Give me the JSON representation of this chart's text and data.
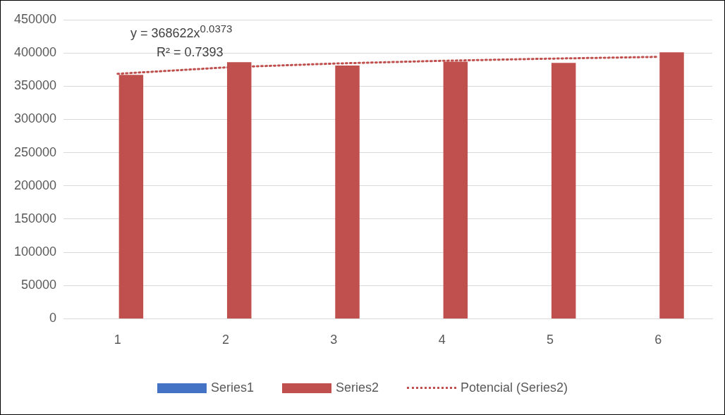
{
  "chart_data": {
    "type": "bar",
    "categories": [
      "1",
      "2",
      "3",
      "4",
      "5",
      "6"
    ],
    "series": [
      {
        "name": "Series1",
        "color": "#4472c4",
        "values": [
          0,
          0,
          0,
          0,
          0,
          0
        ]
      },
      {
        "name": "Series2",
        "color": "#c0504d",
        "values": [
          367000,
          386000,
          381000,
          387000,
          385000,
          401000
        ]
      },
      {
        "name": "Potencial (Series2)",
        "type": "line",
        "color": "#c0504d",
        "line_style": "dotted",
        "marker": "none",
        "values": [
          368622,
          378250,
          384040,
          388200,
          391440,
          394100
        ]
      }
    ],
    "ylim": [
      0,
      450000
    ],
    "yticks": [
      0,
      50000,
      100000,
      150000,
      200000,
      250000,
      300000,
      350000,
      400000,
      450000
    ],
    "grid": "y",
    "legend": "bottom",
    "annotations": [
      "y = 368622x$^{0.0373}$",
      "R² = 0.7393"
    ]
  }
}
